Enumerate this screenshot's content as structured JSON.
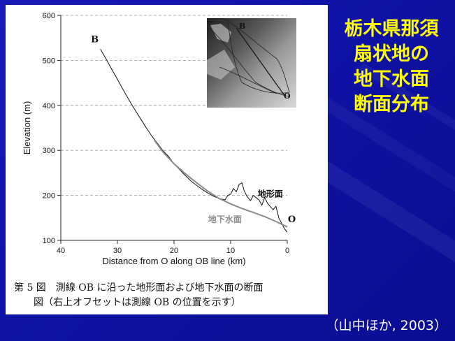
{
  "slide": {
    "title_lines": [
      "栃木県那須",
      "扇状地の",
      "地下水面",
      "断面分布"
    ],
    "citation": "（山中ほか, 2003）",
    "colors": {
      "title": "#ffff00",
      "background": "#1414b0",
      "figure_bg": "#ffffff"
    }
  },
  "caption": {
    "line1": "第 5 図　測線 OB に沿った地形面および地下水面の断面",
    "line2": "図（右上オフセットは測線 OB の位置を示す）"
  },
  "inset_map": {
    "label_b": "B",
    "label_o": "O"
  },
  "chart_data": {
    "type": "line",
    "xlabel": "Distance from O along OB line (km)",
    "ylabel": "Elevation (m)",
    "xlim": [
      40,
      0
    ],
    "ylim": [
      100,
      600
    ],
    "xticks": [
      40,
      30,
      20,
      10,
      0
    ],
    "yticks": [
      100,
      200,
      300,
      400,
      500,
      600
    ],
    "grid": "dashed-horizontal",
    "series": [
      {
        "name": "地形面",
        "color": "#111111",
        "x": [
          33,
          32,
          31,
          30,
          29,
          28,
          27,
          26,
          25,
          24,
          23,
          22,
          21,
          20,
          19,
          18,
          17,
          16,
          15,
          14,
          13,
          12,
          11,
          10.5,
          10,
          9.5,
          9,
          8.5,
          8,
          7.6,
          7.2,
          7,
          6.5,
          6,
          5.5,
          5,
          4.5,
          4,
          3.5,
          3,
          2.5,
          2,
          1.5,
          1,
          0.5,
          0
        ],
        "y": [
          525,
          503,
          480,
          458,
          435,
          413,
          392,
          372,
          352,
          333,
          317,
          300,
          287,
          270,
          257,
          244,
          232,
          222,
          213,
          205,
          198,
          193,
          190,
          200,
          203,
          215,
          208,
          224,
          228,
          210,
          200,
          196,
          188,
          200,
          195,
          190,
          178,
          195,
          183,
          175,
          168,
          176,
          150,
          138,
          126,
          118
        ]
      },
      {
        "name": "地下水面",
        "color": "#8a8a8a",
        "x": [
          23.5,
          22,
          20,
          18,
          16,
          14,
          12,
          10,
          8,
          6,
          4,
          2,
          0
        ],
        "y": [
          323,
          297,
          270,
          248,
          228,
          209,
          193,
          181,
          171,
          162,
          153,
          142,
          130
        ]
      }
    ],
    "annotations": [
      {
        "text": "B",
        "x": 34,
        "y": 540
      },
      {
        "text": "地形面",
        "x": 3,
        "y": 197
      },
      {
        "text": "地下水面",
        "x": 11,
        "y": 140
      },
      {
        "text": "O",
        "x": -0.8,
        "y": 140
      }
    ]
  }
}
